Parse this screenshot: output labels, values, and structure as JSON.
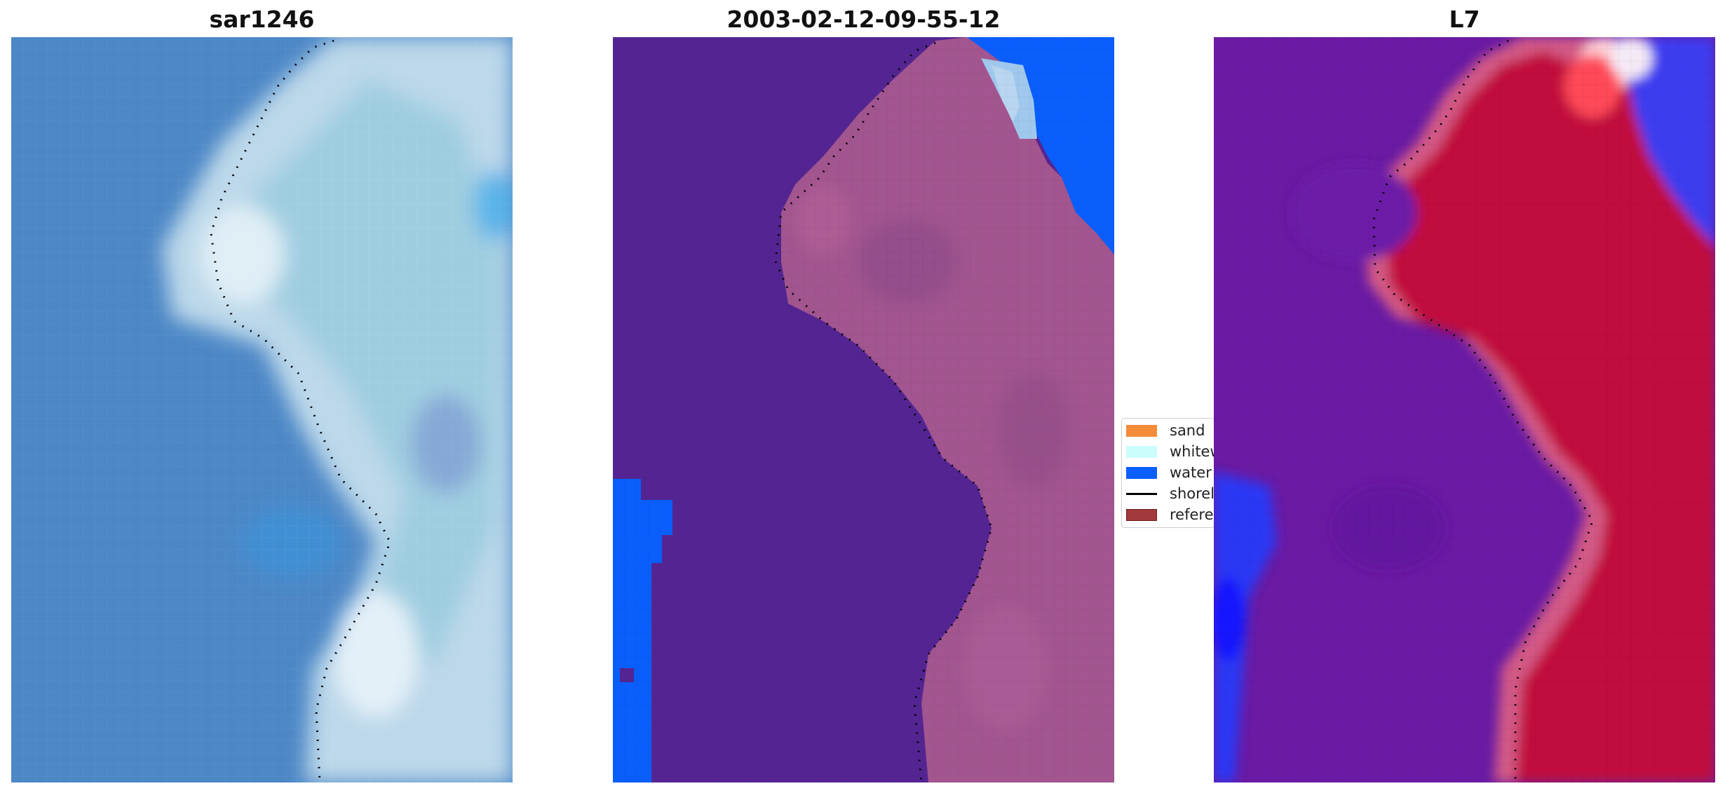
{
  "panels": [
    {
      "title": "sar1246"
    },
    {
      "title": "2003-02-12-09-55-12"
    },
    {
      "title": "L7"
    }
  ],
  "legend": {
    "items": [
      {
        "label": "sand",
        "color": "#f58c3a",
        "kind": "patch"
      },
      {
        "label": "whitewater",
        "color": "#ccfdfd",
        "kind": "patch"
      },
      {
        "label": "water",
        "color": "#0a5efc",
        "kind": "patch"
      },
      {
        "label": "shoreline",
        "color": "#000000",
        "kind": "line"
      },
      {
        "label": "reference shoreline",
        "color": "#a2393a",
        "kind": "patch"
      }
    ]
  },
  "colors": {
    "rgb_water": "#4c87c6",
    "rgb_shore": "#c7dcec",
    "classified_sea": "#542592",
    "classified_land": "#a2558f",
    "classified_water": "#0a5efc",
    "index_low": "#6a1aa4",
    "index_high": "#c1073c",
    "index_blue": "#2a38f5"
  }
}
